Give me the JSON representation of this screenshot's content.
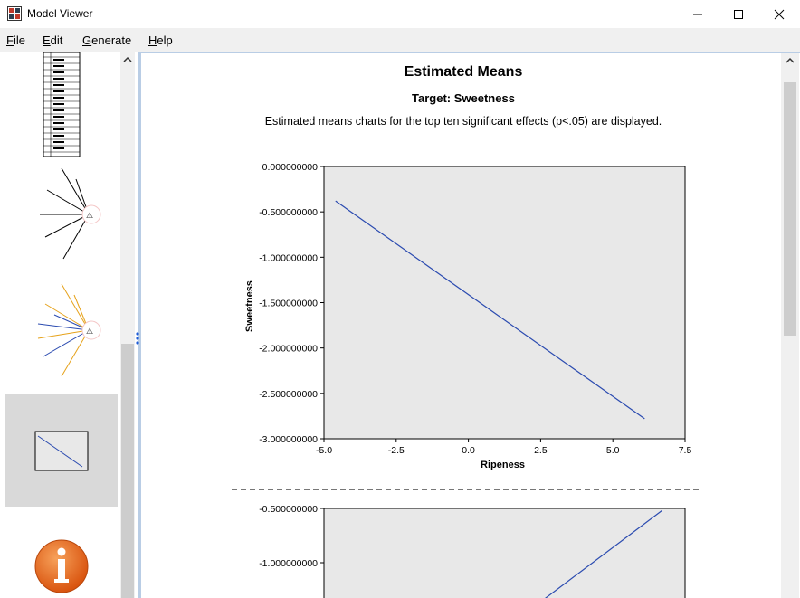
{
  "window": {
    "title": "Model Viewer",
    "icon": "model-viewer-icon"
  },
  "menu": {
    "file": {
      "label": "File",
      "mnemonic": "F",
      "rest": "ile"
    },
    "edit": {
      "label": "Edit",
      "mnemonic": "E",
      "rest": "dit"
    },
    "generate": {
      "label": "Generate",
      "mnemonic": "G",
      "rest": "enerate"
    },
    "help": {
      "label": "Help",
      "mnemonic": "H",
      "rest": "elp"
    }
  },
  "content": {
    "title": "Estimated Means",
    "target": "Target: Sweetness",
    "description": "Estimated means charts for the top ten significant effects (p<.05) are displayed."
  },
  "chart_data": [
    {
      "type": "line",
      "title": "",
      "xlabel": "Ripeness",
      "ylabel": "Sweetness",
      "xlim": [
        -5.0,
        7.5
      ],
      "ylim": [
        -3.0,
        0.0
      ],
      "xticks": [
        "-5.0",
        "-2.5",
        "0.0",
        "2.5",
        "5.0",
        "7.5"
      ],
      "yticks": [
        "0.000000000",
        "-0.500000000",
        "-1.000000000",
        "-1.500000000",
        "-2.000000000",
        "-2.500000000",
        "-3.000000000"
      ],
      "series": [
        {
          "name": "Sweetness",
          "x": [
            -4.6,
            6.1
          ],
          "y": [
            -0.38,
            -2.78
          ],
          "color": "#2b4bb0"
        }
      ]
    },
    {
      "type": "line",
      "title": "",
      "xlabel": "",
      "ylabel": "",
      "yticks": [
        "-0.500000000",
        "-1.000000000"
      ],
      "ylim": [
        -1.5,
        -0.5
      ],
      "xlim": [
        -5.0,
        7.5
      ],
      "series": [
        {
          "name": "Sweetness",
          "x": [
            1.8,
            6.7
          ],
          "y": [
            -1.5,
            -0.52
          ],
          "color": "#2b4bb0"
        }
      ]
    }
  ],
  "colors": {
    "plot_bg": "#e8e8e8",
    "line": "#2b4bb0",
    "selection": "#d9d9d9",
    "info_orange": "#e8681a"
  }
}
